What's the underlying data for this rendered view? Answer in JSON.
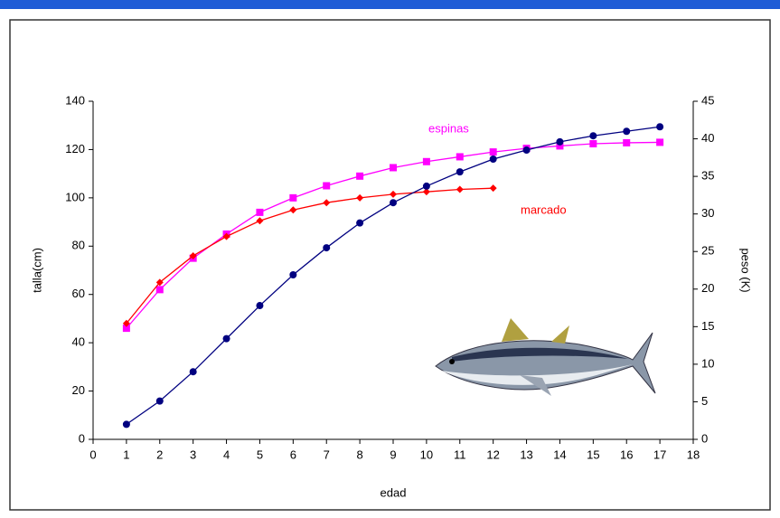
{
  "chart_data": {
    "type": "line",
    "x_label": "edad",
    "y_label": "talla(cm)",
    "y2_label": "peso (K)",
    "x": [
      1,
      2,
      3,
      4,
      5,
      6,
      7,
      8,
      9,
      10,
      11,
      12,
      13,
      14,
      15,
      16,
      17
    ],
    "series": [
      {
        "name": "espinas",
        "color": "#ff00ff",
        "marker": "square",
        "values": [
          46,
          62,
          75,
          85,
          94,
          100,
          105,
          109,
          112.5,
          115,
          117,
          119,
          120.5,
          121.5,
          122.4,
          122.8,
          123
        ]
      },
      {
        "name": "marcado",
        "color": "#ff0000",
        "marker": "diamond",
        "values": [
          48,
          65,
          76,
          84,
          90.5,
          95,
          98,
          100,
          101.5,
          102.5,
          103.5,
          104,
          null,
          null,
          null,
          null,
          null
        ]
      },
      {
        "color": "#000080",
        "marker": "circle",
        "axis": "y2",
        "values": [
          2.0,
          5.1,
          9.0,
          13.4,
          17.8,
          21.9,
          25.5,
          28.8,
          31.5,
          33.7,
          35.6,
          37.3,
          38.5,
          39.6,
          40.4,
          41.0,
          41.6
        ]
      }
    ],
    "xlim": [
      0,
      18
    ],
    "xticks": [
      0,
      1,
      2,
      3,
      4,
      5,
      6,
      7,
      8,
      9,
      10,
      11,
      12,
      13,
      14,
      15,
      16,
      17,
      18
    ],
    "ylim": [
      0,
      140
    ],
    "yticks": [
      0,
      20,
      40,
      60,
      80,
      100,
      120,
      140
    ],
    "y2lim": [
      0,
      45
    ],
    "y2ticks": [
      0,
      5,
      10,
      15,
      20,
      25,
      30,
      35,
      40,
      45
    ],
    "grid": false
  }
}
